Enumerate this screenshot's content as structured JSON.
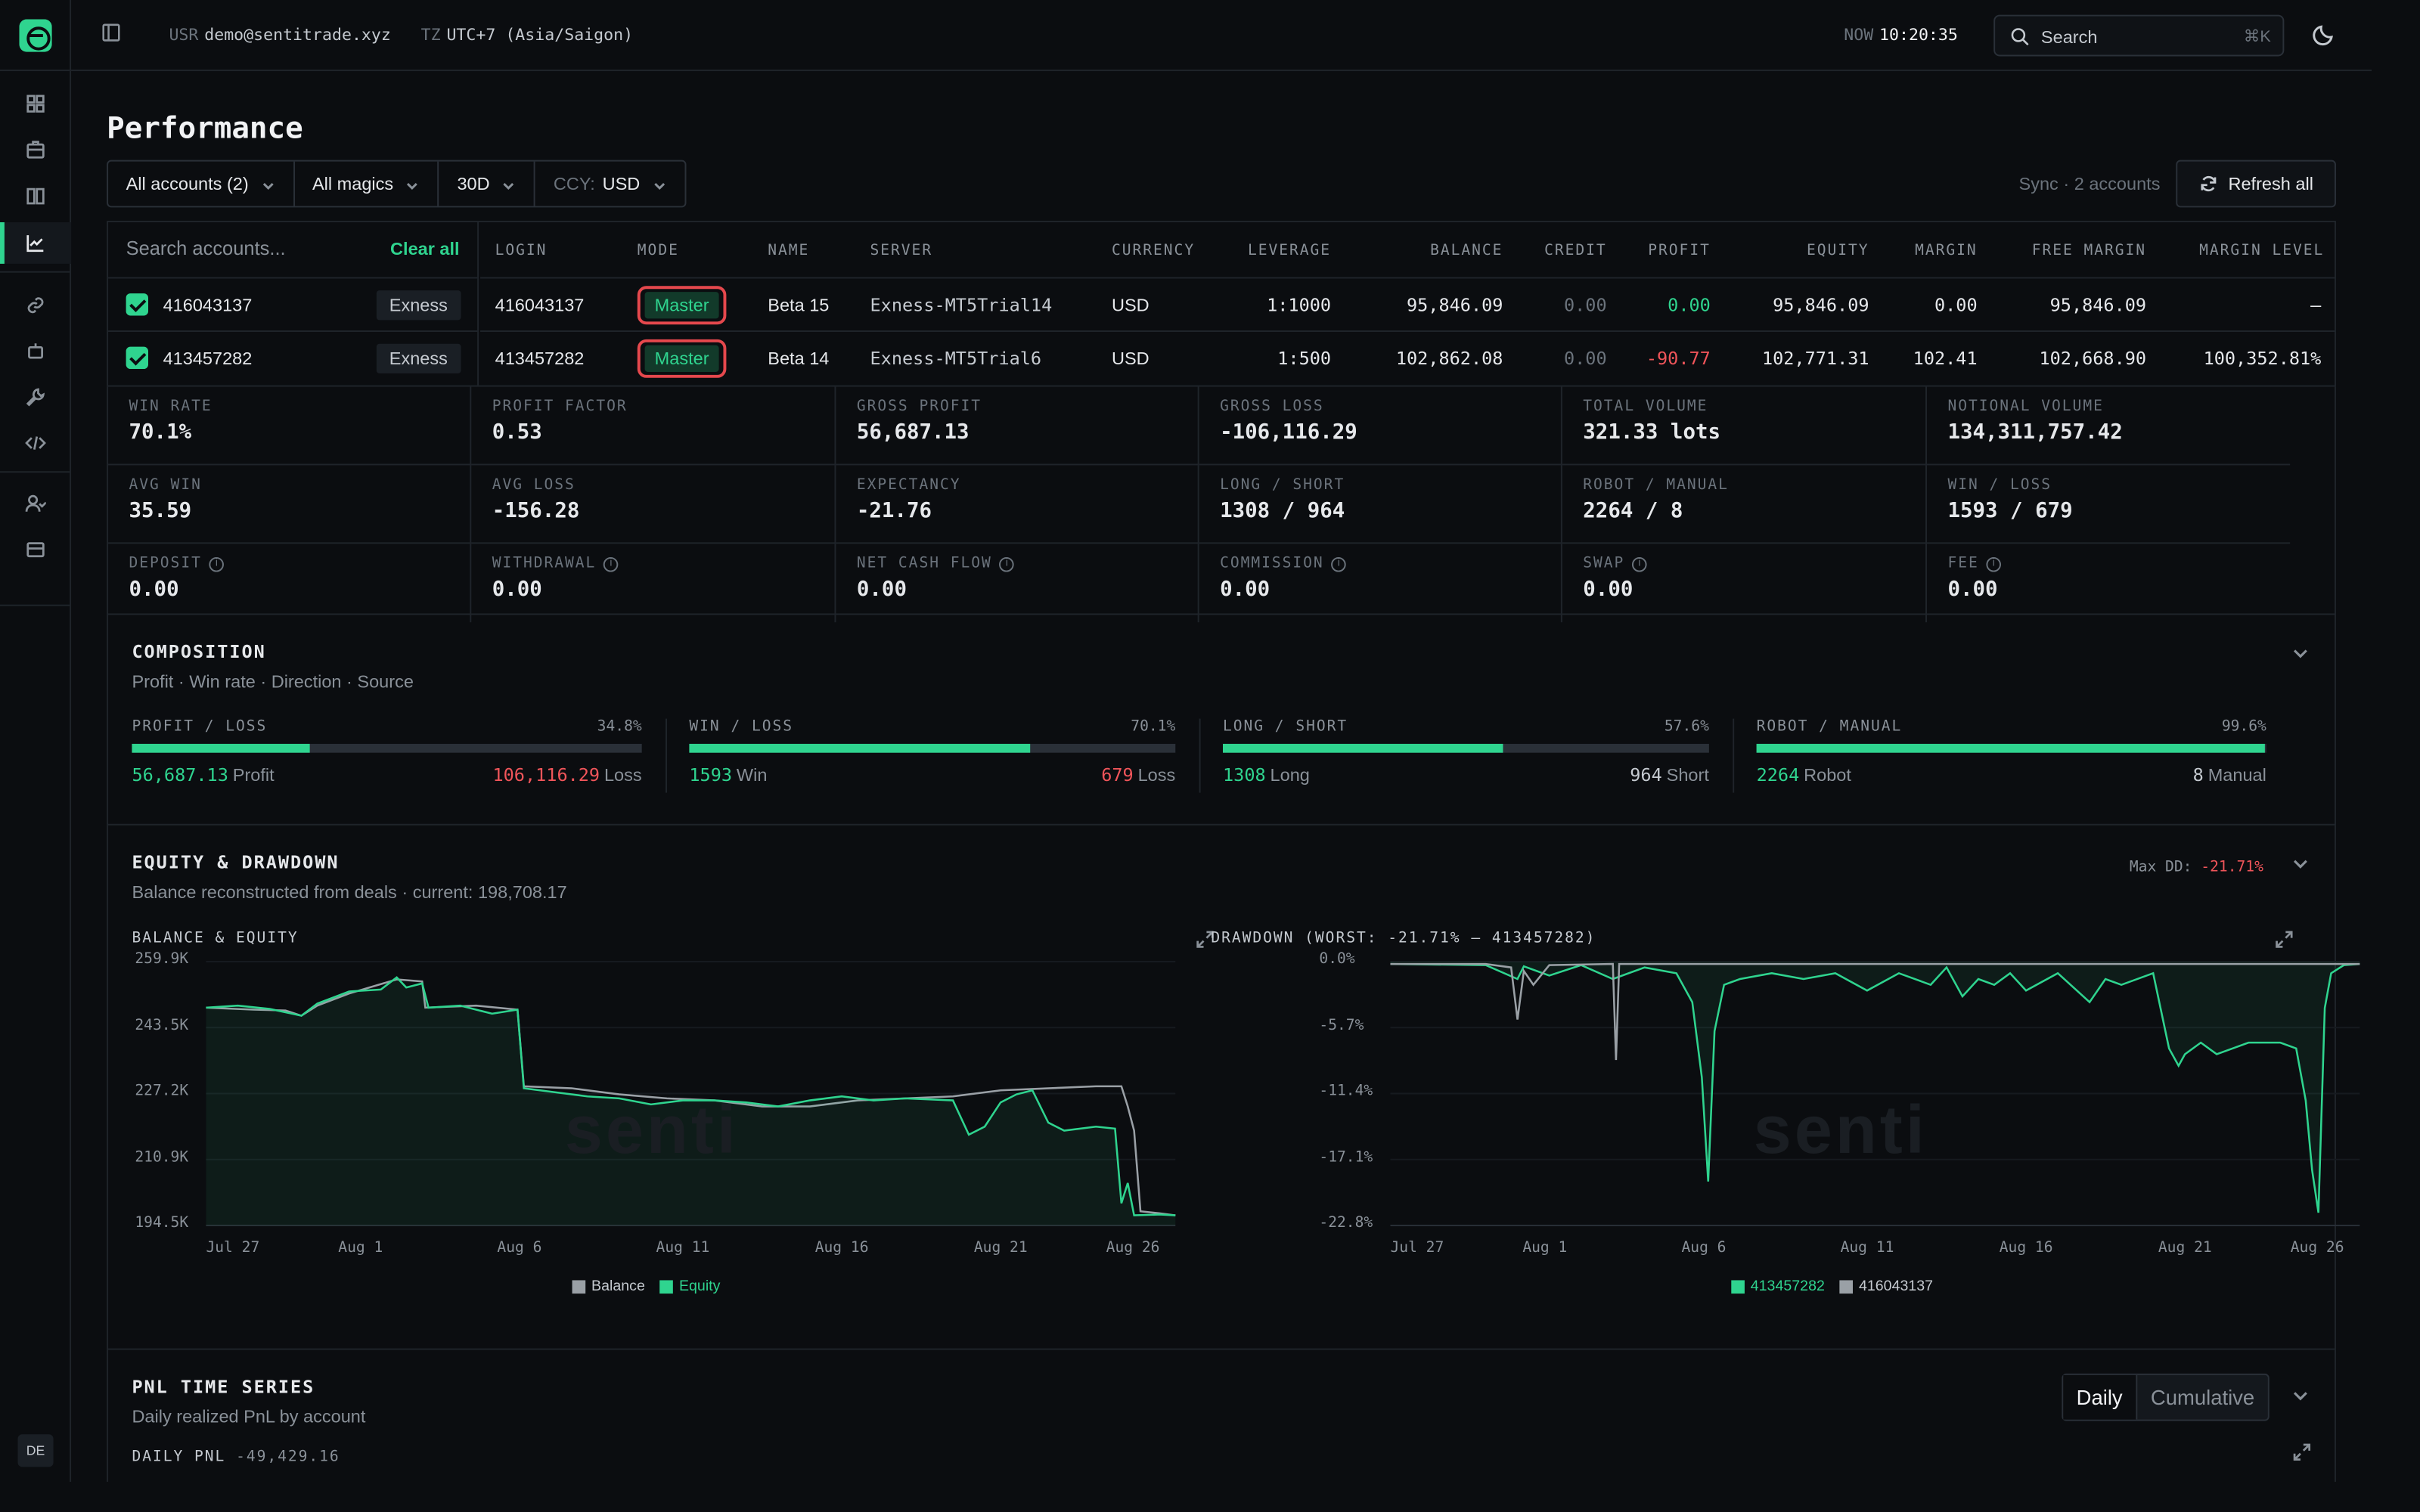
{
  "topbar": {
    "user_key": "USR",
    "user": "demo@sentitrade.xyz",
    "tz_key": "TZ",
    "tz": "UTC+7 (Asia/Saigon)",
    "now_key": "NOW",
    "now": "10:20:35",
    "search_label": "Search",
    "search_kbd": "⌘K"
  },
  "sidebar": {
    "items": [
      "dashboard-icon",
      "briefcase-icon",
      "book-icon",
      "chart-icon",
      "link-icon",
      "robot-icon",
      "wrench-icon",
      "code-icon",
      "users-icon",
      "archive-icon"
    ],
    "active": "chart-icon",
    "lang": "DE"
  },
  "page": {
    "title": "Performance",
    "filters": {
      "accounts": "All accounts (2)",
      "magics": "All magics",
      "period": "30D",
      "ccy_prefix": "CCY:",
      "ccy": "USD"
    },
    "sync": "Sync · 2 accounts",
    "refresh": "Refresh all"
  },
  "accounts": {
    "search_placeholder": "Search accounts...",
    "clear_all": "Clear all",
    "columns": [
      "LOGIN",
      "MODE",
      "NAME",
      "SERVER",
      "CURRENCY",
      "LEVERAGE",
      "BALANCE",
      "CREDIT",
      "PROFIT",
      "EQUITY",
      "MARGIN",
      "FREE MARGIN",
      "MARGIN LEVEL"
    ],
    "rows": [
      {
        "login": "416043137",
        "broker": "Exness",
        "mode": "Master",
        "name": "Beta 15",
        "server": "Exness-MT5Trial14",
        "currency": "USD",
        "leverage": "1:1000",
        "balance": "95,846.09",
        "credit": "0.00",
        "profit": "0.00",
        "equity": "95,846.09",
        "margin": "0.00",
        "free_margin": "95,846.09",
        "margin_level": "–"
      },
      {
        "login": "413457282",
        "broker": "Exness",
        "mode": "Master",
        "name": "Beta 14",
        "server": "Exness-MT5Trial6",
        "currency": "USD",
        "leverage": "1:500",
        "balance": "102,862.08",
        "credit": "0.00",
        "profit": "-90.77",
        "equity": "102,771.31",
        "margin": "102.41",
        "free_margin": "102,668.90",
        "margin_level": "100,352.81%"
      }
    ]
  },
  "stats": [
    {
      "label": "WIN RATE",
      "value": "70.1%",
      "tone": ""
    },
    {
      "label": "PROFIT FACTOR",
      "value": "0.53",
      "tone": "neg"
    },
    {
      "label": "GROSS PROFIT",
      "value": "56,687.13",
      "tone": "pos"
    },
    {
      "label": "GROSS LOSS",
      "value": "-106,116.29",
      "tone": "neg"
    },
    {
      "label": "TOTAL VOLUME",
      "value": "321.33 lots",
      "tone": ""
    },
    {
      "label": "NOTIONAL VOLUME",
      "value": "134,311,757.42",
      "tone": ""
    },
    {
      "label": "AVG WIN",
      "value": "35.59",
      "tone": "pos"
    },
    {
      "label": "AVG LOSS",
      "value": "-156.28",
      "tone": "neg"
    },
    {
      "label": "EXPECTANCY",
      "value": "-21.76",
      "tone": ""
    },
    {
      "label": "LONG / SHORT",
      "value": "1308 / 964",
      "tone": ""
    },
    {
      "label": "ROBOT / MANUAL",
      "value": "2264 / 8",
      "tone": ""
    },
    {
      "label": "WIN / LOSS",
      "value": "1593 / 679",
      "tone": ""
    },
    {
      "label": "DEPOSIT",
      "value": "0.00",
      "tone": "",
      "info": true
    },
    {
      "label": "WITHDRAWAL",
      "value": "0.00",
      "tone": "",
      "info": true
    },
    {
      "label": "NET CASH FLOW",
      "value": "0.00",
      "tone": "",
      "info": true
    },
    {
      "label": "COMMISSION",
      "value": "0.00",
      "tone": "",
      "info": true
    },
    {
      "label": "SWAP",
      "value": "0.00",
      "tone": "",
      "info": true
    },
    {
      "label": "FEE",
      "value": "0.00",
      "tone": "",
      "info": true
    }
  ],
  "composition": {
    "title": "COMPOSITION",
    "subtitle": "Profit · Win rate · Direction · Source",
    "items": [
      {
        "label": "PROFIT / LOSS",
        "pct": "34.8%",
        "fill": 0.348,
        "left_val": "56,687.13",
        "left_lbl": "Profit",
        "right_val": "106,116.29",
        "right_lbl": "Loss",
        "left_color": "#2fd48f",
        "right_color": "#f0555a"
      },
      {
        "label": "WIN / LOSS",
        "pct": "70.1%",
        "fill": 0.701,
        "left_val": "1593",
        "left_lbl": "Win",
        "right_val": "679",
        "right_lbl": "Loss",
        "left_color": "#2fd48f",
        "right_color": "#f0555a"
      },
      {
        "label": "LONG / SHORT",
        "pct": "57.6%",
        "fill": 0.576,
        "left_val": "1308",
        "left_lbl": "Long",
        "right_val": "964",
        "right_lbl": "Short",
        "left_color": "#2fd48f",
        "right_color": "#c5cad0"
      },
      {
        "label": "ROBOT / MANUAL",
        "pct": "99.6%",
        "fill": 0.996,
        "left_val": "2264",
        "left_lbl": "Robot",
        "right_val": "8",
        "right_lbl": "Manual",
        "left_color": "#2fd48f",
        "right_color": "#c5cad0"
      }
    ]
  },
  "equity_section": {
    "title": "EQUITY & DRAWDOWN",
    "subtitle": "Balance reconstructed from deals · current: 198,708.17",
    "maxdd_label": "Max DD:",
    "maxdd_value": "-21.71%"
  },
  "chart_data": [
    {
      "type": "area",
      "title": "BALANCE & EQUITY",
      "x": [
        "Jul 27",
        "Aug 1",
        "Aug 6",
        "Aug 11",
        "Aug 16",
        "Aug 21",
        "Aug 26"
      ],
      "y_ticks": [
        "259.9K",
        "243.5K",
        "227.2K",
        "210.9K",
        "194.5K"
      ],
      "ylim": [
        194500,
        259900
      ],
      "series": [
        {
          "name": "Balance",
          "color": "#9aa0a6",
          "points": [
            [
              0,
              248500
            ],
            [
              1.5,
              248000
            ],
            [
              2.5,
              247800
            ],
            [
              3,
              246500
            ],
            [
              3.5,
              249000
            ],
            [
              4.5,
              252000
            ],
            [
              6,
              255500
            ],
            [
              6.8,
              255000
            ],
            [
              6.9,
              248500
            ],
            [
              8.5,
              249000
            ],
            [
              9.8,
              248000
            ],
            [
              10,
              229000
            ],
            [
              11.5,
              228500
            ],
            [
              13,
              227000
            ],
            [
              14.5,
              226000
            ],
            [
              16,
              225500
            ],
            [
              17.5,
              224000
            ],
            [
              19,
              224000
            ],
            [
              20.5,
              225500
            ],
            [
              22,
              226000
            ],
            [
              23.5,
              226500
            ],
            [
              25,
              228000
            ],
            [
              26.5,
              228500
            ],
            [
              28,
              229000
            ],
            [
              28.8,
              229000
            ],
            [
              29,
              224000
            ],
            [
              29.2,
              218000
            ],
            [
              29.4,
              198000
            ],
            [
              30,
              197500
            ],
            [
              30.5,
              197000
            ]
          ]
        },
        {
          "name": "Equity",
          "color": "#2fd48f",
          "points": [
            [
              0,
              248500
            ],
            [
              1,
              249000
            ],
            [
              2,
              248200
            ],
            [
              3,
              246500
            ],
            [
              3.5,
              249500
            ],
            [
              4.5,
              252500
            ],
            [
              5.5,
              253000
            ],
            [
              6,
              256000
            ],
            [
              6.3,
              253500
            ],
            [
              6.8,
              254500
            ],
            [
              7,
              248500
            ],
            [
              8,
              249000
            ],
            [
              9,
              247000
            ],
            [
              9.8,
              248000
            ],
            [
              10,
              228500
            ],
            [
              11,
              227500
            ],
            [
              12,
              226500
            ],
            [
              13,
              226000
            ],
            [
              14,
              224500
            ],
            [
              15,
              225500
            ],
            [
              16,
              225500
            ],
            [
              17,
              225000
            ],
            [
              18,
              224000
            ],
            [
              19,
              225500
            ],
            [
              20,
              226500
            ],
            [
              21,
              225500
            ],
            [
              22,
              226000
            ],
            [
              23.5,
              225500
            ],
            [
              24,
              217000
            ],
            [
              24.5,
              219000
            ],
            [
              25,
              225000
            ],
            [
              25.5,
              227000
            ],
            [
              26,
              228000
            ],
            [
              26.5,
              220000
            ],
            [
              27,
              218000
            ],
            [
              28,
              219000
            ],
            [
              28.6,
              218500
            ],
            [
              28.8,
              200000
            ],
            [
              29,
              205000
            ],
            [
              29.2,
              197000
            ],
            [
              30,
              197200
            ],
            [
              30.5,
              197000
            ]
          ]
        }
      ]
    },
    {
      "type": "area",
      "title": "DRAWDOWN (WORST: -21.71% — 413457282)",
      "x": [
        "Jul 27",
        "Aug 1",
        "Aug 6",
        "Aug 11",
        "Aug 16",
        "Aug 21",
        "Aug 26"
      ],
      "y_ticks": [
        "0.0%",
        "-5.7%",
        "-11.4%",
        "-17.1%",
        "-22.8%"
      ],
      "ylim": [
        -22.8,
        0
      ],
      "series": [
        {
          "name": "413457282",
          "color": "#2fd48f",
          "points": [
            [
              0,
              -0.2
            ],
            [
              3,
              -0.3
            ],
            [
              4,
              -1.5
            ],
            [
              4.2,
              -0.4
            ],
            [
              5,
              -1.2
            ],
            [
              6,
              -0.3
            ],
            [
              7,
              -1.5
            ],
            [
              8,
              -0.5
            ],
            [
              9,
              -1.0
            ],
            [
              9.5,
              -3.5
            ],
            [
              9.8,
              -10
            ],
            [
              10,
              -19
            ],
            [
              10.2,
              -6
            ],
            [
              10.5,
              -2
            ],
            [
              11,
              -1.5
            ],
            [
              12,
              -1.0
            ],
            [
              13,
              -1.5
            ],
            [
              14,
              -1.0
            ],
            [
              15,
              -2.5
            ],
            [
              16,
              -1.0
            ],
            [
              17,
              -2.0
            ],
            [
              17.5,
              -0.5
            ],
            [
              18,
              -3.0
            ],
            [
              18.5,
              -1.5
            ],
            [
              19,
              -2.0
            ],
            [
              19.5,
              -1.0
            ],
            [
              20,
              -2.5
            ],
            [
              21,
              -1.0
            ],
            [
              22,
              -3.5
            ],
            [
              22.5,
              -1.5
            ],
            [
              23,
              -2.0
            ],
            [
              24,
              -1.0
            ],
            [
              24.5,
              -7.5
            ],
            [
              24.8,
              -9.0
            ],
            [
              25,
              -8.0
            ],
            [
              25.5,
              -7.0
            ],
            [
              26,
              -8.0
            ],
            [
              26.5,
              -7.5
            ],
            [
              27,
              -7.0
            ],
            [
              28,
              -7.0
            ],
            [
              28.5,
              -7.5
            ],
            [
              28.8,
              -12
            ],
            [
              29,
              -18
            ],
            [
              29.2,
              -21.7
            ],
            [
              29.4,
              -4
            ],
            [
              29.6,
              -1.0
            ],
            [
              30,
              -0.3
            ],
            [
              30.5,
              -0.2
            ]
          ]
        },
        {
          "name": "416043137",
          "color": "#9aa0a6",
          "points": [
            [
              0,
              -0.2
            ],
            [
              3,
              -0.2
            ],
            [
              3.8,
              -0.5
            ],
            [
              4,
              -5.0
            ],
            [
              4.2,
              -0.8
            ],
            [
              4.5,
              -2.0
            ],
            [
              5,
              -0.3
            ],
            [
              7,
              -0.2
            ],
            [
              7.1,
              -8.5
            ],
            [
              7.2,
              -0.2
            ],
            [
              30.5,
              -0.2
            ]
          ]
        }
      ]
    }
  ],
  "pnl_section": {
    "title": "PNL TIME SERIES",
    "subtitle": "Daily realized PnL by account",
    "toggle_daily": "Daily",
    "toggle_cum": "Cumulative",
    "chart_label": "DAILY PNL",
    "chart_total": "-49,429.16"
  },
  "watermark": "senti"
}
